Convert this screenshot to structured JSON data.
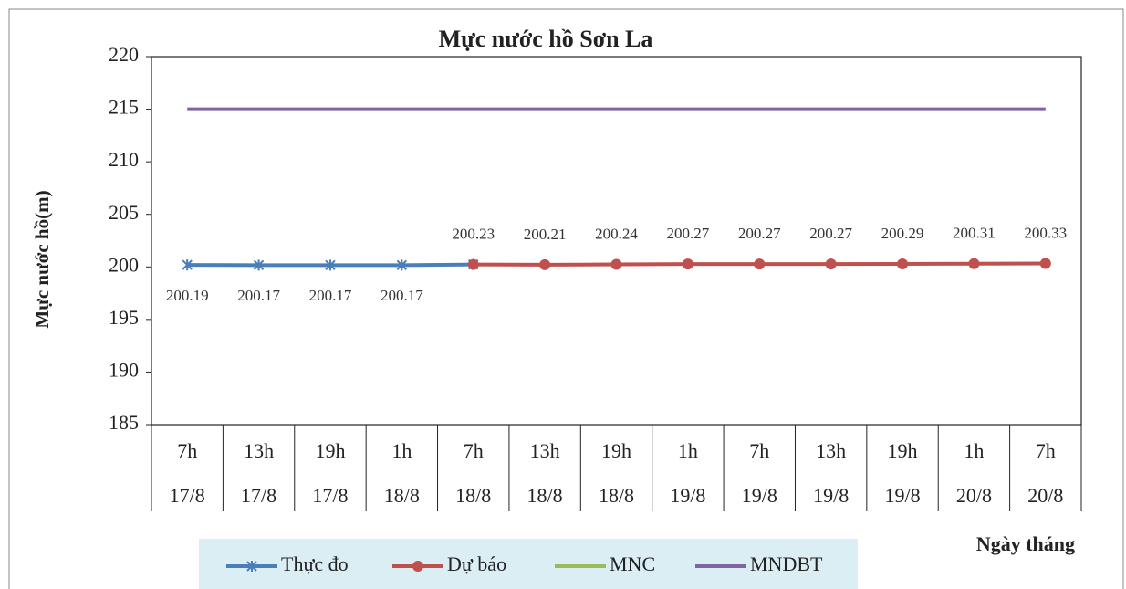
{
  "chart_data": {
    "type": "line",
    "title": "Mực nước hồ Sơn La",
    "y_label": "Mực nước hồ(m)",
    "x_label": "Ngày tháng",
    "categories": [
      [
        "7h",
        "17/8"
      ],
      [
        "13h",
        "17/8"
      ],
      [
        "19h",
        "17/8"
      ],
      [
        "1h",
        "18/8"
      ],
      [
        "7h",
        "18/8"
      ],
      [
        "13h",
        "18/8"
      ],
      [
        "19h",
        "18/8"
      ],
      [
        "1h",
        "19/8"
      ],
      [
        "7h",
        "19/8"
      ],
      [
        "13h",
        "19/8"
      ],
      [
        "19h",
        "19/8"
      ],
      [
        "1h",
        "20/8"
      ],
      [
        "7h",
        "20/8"
      ]
    ],
    "series": [
      {
        "name": "Thực đo",
        "color": "#4a7ebb",
        "marker": "star",
        "values": [
          200.19,
          200.17,
          200.17,
          200.17,
          200.23,
          null,
          null,
          null,
          null,
          null,
          null,
          null,
          null
        ],
        "value_labels": [
          "200.19",
          "200.17",
          "200.17",
          "200.17",
          null,
          null,
          null,
          null,
          null,
          null,
          null,
          null,
          null
        ]
      },
      {
        "name": "Dự báo",
        "color": "#c0504d",
        "marker": "circle",
        "values": [
          null,
          null,
          null,
          null,
          200.23,
          200.21,
          200.24,
          200.27,
          200.27,
          200.27,
          200.29,
          200.31,
          200.33
        ],
        "value_labels": [
          null,
          null,
          null,
          null,
          "200.23",
          "200.21",
          "200.24",
          "200.27",
          "200.27",
          "200.27",
          "200.29",
          "200.31",
          "200.33"
        ]
      },
      {
        "name": "MNC",
        "color": "#9bbb59",
        "marker": "none",
        "values": [
          null,
          null,
          null,
          null,
          null,
          null,
          null,
          null,
          null,
          null,
          null,
          null,
          null
        ]
      },
      {
        "name": "MNDBT",
        "color": "#8064a2",
        "marker": "none",
        "values": [
          215,
          215,
          215,
          215,
          215,
          215,
          215,
          215,
          215,
          215,
          215,
          215,
          215
        ]
      }
    ],
    "ylim": [
      185,
      220
    ],
    "yticks": [
      185,
      190,
      195,
      200,
      205,
      210,
      215,
      220
    ],
    "grid": false,
    "legend": "bottom"
  }
}
